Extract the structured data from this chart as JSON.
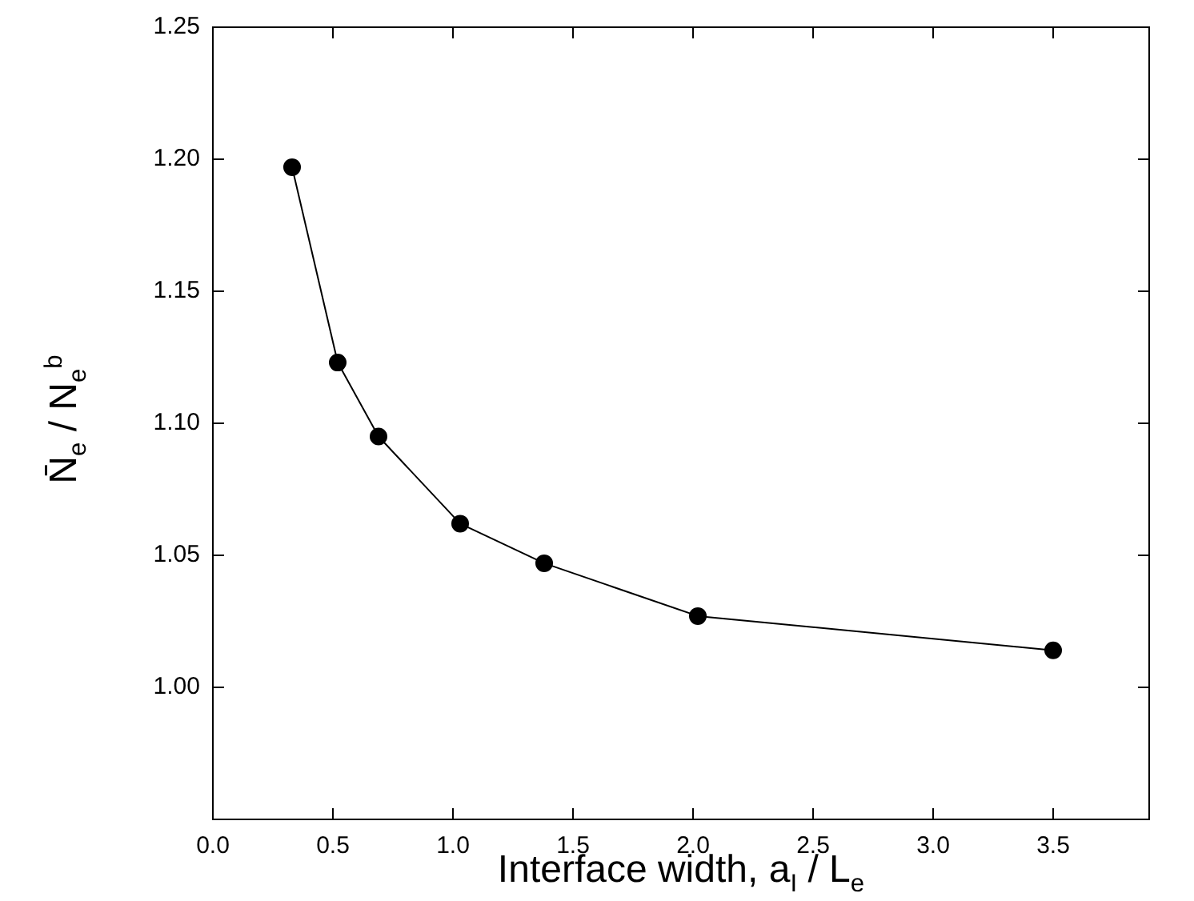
{
  "chart_data": {
    "type": "line",
    "xlabel": "Interface width, a$_{I}$ / L$_{e}$",
    "ylabel": "N̄$_{e}$ / N$_{e}$$^{b}$",
    "x": [
      0.33,
      0.52,
      0.69,
      1.03,
      1.38,
      2.02,
      3.5
    ],
    "series": [
      {
        "color": "#000000",
        "values": [
          1.197,
          1.123,
          1.095,
          1.062,
          1.047,
          1.027,
          1.014
        ]
      }
    ],
    "xlim": [
      0,
      3.9
    ],
    "ylim": [
      0.95,
      1.25
    ],
    "xticks": [
      {
        "value": 0,
        "label": "0.0"
      },
      {
        "value": 0.5,
        "label": "0.5"
      },
      {
        "value": 1,
        "label": "1.0"
      },
      {
        "value": 1.5,
        "label": "1.5"
      },
      {
        "value": 2,
        "label": "2.0"
      },
      {
        "value": 2.5,
        "label": "2.5"
      },
      {
        "value": 3,
        "label": "3.0"
      },
      {
        "value": 3.5,
        "label": "3.5"
      }
    ],
    "yticks": [
      {
        "value": 1,
        "label": "1.00"
      },
      {
        "value": 1.05,
        "label": "1.05"
      },
      {
        "value": 1.1,
        "label": "1.10"
      },
      {
        "value": 1.15,
        "label": "1.15"
      },
      {
        "value": 1.2,
        "label": "1.20"
      },
      {
        "value": 1.25,
        "label": "1.25"
      }
    ],
    "grid": false,
    "legend": false,
    "marker": "circle",
    "line_style": "solid"
  }
}
